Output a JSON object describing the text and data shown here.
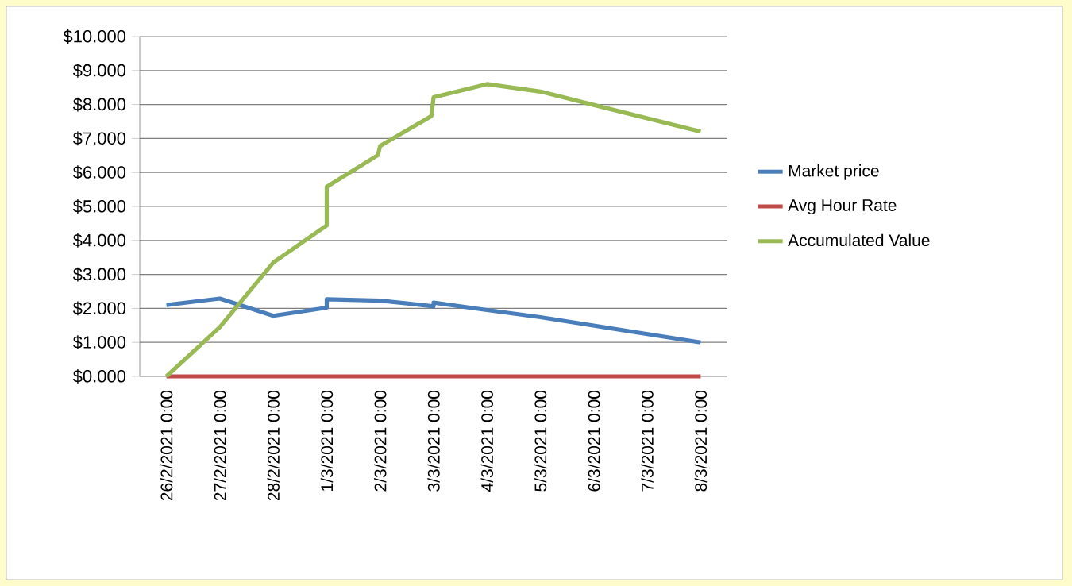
{
  "chart_data": {
    "type": "line",
    "x": [
      "2021-02-26T00:00",
      "2021-02-27T00:00",
      "2021-02-28T00:00",
      "2021-03-01T00:00",
      "2021-03-01T00:00",
      "2021-03-02T00:00",
      "2021-03-03T00:00",
      "2021-03-03T00:00",
      "2021-03-04T00:00",
      "2021-03-05T00:00",
      "2021-03-08T00:00"
    ],
    "series": [
      {
        "name": "Market price",
        "color": "#4a7ebb",
        "values": [
          2.1,
          2.29,
          1.78,
          2.02,
          2.27,
          2.23,
          2.06,
          2.17,
          1.95,
          1.74,
          1.0
        ]
      },
      {
        "name": "Avg Hour Rate",
        "color": "#be4b48",
        "values": [
          0,
          0,
          0,
          0,
          0,
          0,
          0,
          0,
          0,
          0,
          0
        ]
      },
      {
        "name": "Accumulated Value",
        "color": "#98b954",
        "x": [
          "2021-02-26T00:00",
          "2021-02-27T00:00",
          "2021-02-28T00:00",
          "2021-03-01T00:00",
          "2021-03-01T00:00",
          "2021-03-01T23:00",
          "2021-03-02T00:00",
          "2021-03-02T23:00",
          "2021-03-03T00:00",
          "2021-03-04T00:00",
          "2021-03-05T00:00",
          "2021-03-08T00:00"
        ],
        "values": [
          0,
          1.45,
          3.35,
          4.44,
          5.58,
          6.51,
          6.78,
          7.66,
          8.21,
          8.6,
          8.38,
          7.2
        ]
      }
    ],
    "xlim": [
      "2021-02-25T12:00",
      "2021-03-08T12:00"
    ],
    "xticks": [
      {
        "value": "2021-02-26",
        "label": "26/2/2021 0:00"
      },
      {
        "value": "2021-02-27",
        "label": "27/2/2021 0:00"
      },
      {
        "value": "2021-02-28",
        "label": "28/2/2021 0:00"
      },
      {
        "value": "2021-03-01",
        "label": "1/3/2021 0:00"
      },
      {
        "value": "2021-03-02",
        "label": "2/3/2021 0:00"
      },
      {
        "value": "2021-03-03",
        "label": "3/3/2021 0:00"
      },
      {
        "value": "2021-03-04",
        "label": "4/3/2021 0:00"
      },
      {
        "value": "2021-03-05",
        "label": "5/3/2021 0:00"
      },
      {
        "value": "2021-03-06",
        "label": "6/3/2021 0:00"
      },
      {
        "value": "2021-03-07",
        "label": "7/3/2021 0:00"
      },
      {
        "value": "2021-03-08",
        "label": "8/3/2021 0:00"
      }
    ],
    "ylim": [
      0,
      10
    ],
    "yticks": [
      {
        "value": 0,
        "label": "$0.000"
      },
      {
        "value": 1,
        "label": "$1.000"
      },
      {
        "value": 2,
        "label": "$2.000"
      },
      {
        "value": 3,
        "label": "$3.000"
      },
      {
        "value": 4,
        "label": "$4.000"
      },
      {
        "value": 5,
        "label": "$5.000"
      },
      {
        "value": 6,
        "label": "$6.000"
      },
      {
        "value": 7,
        "label": "$7.000"
      },
      {
        "value": 8,
        "label": "$8.000"
      },
      {
        "value": 9,
        "label": "$9.000"
      },
      {
        "value": 10,
        "label": "$10.000"
      }
    ],
    "grid": "y",
    "legend": "right",
    "marker": "none",
    "line_style": "solid"
  }
}
